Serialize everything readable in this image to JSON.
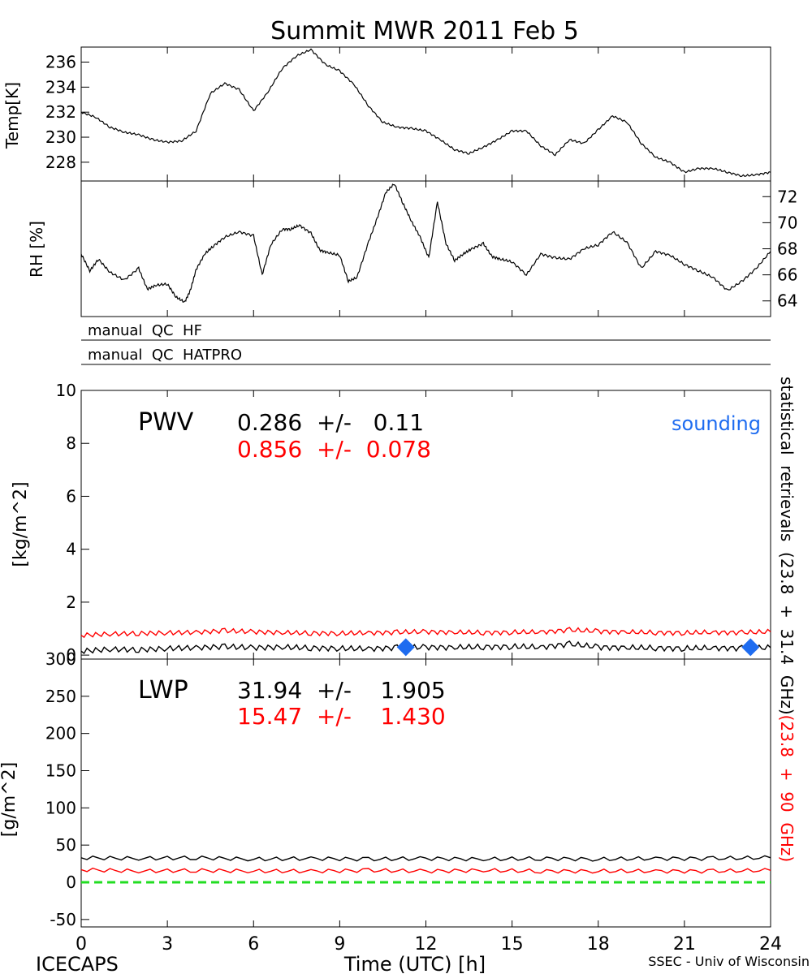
{
  "title": "Summit MWR 2011 Feb  5",
  "footer": {
    "left": "ICECAPS",
    "center": "Time (UTC) [h]",
    "right": "SSEC - Univ of Wisconsin"
  },
  "colors": {
    "hf": "#000000",
    "hatpro": "#ff0000",
    "sounding": "#1e6cf0",
    "zero_line": "#22dd22"
  },
  "x_axis": {
    "ticks": [
      0,
      3,
      6,
      9,
      12,
      15,
      18,
      21,
      24
    ],
    "tick_labels": [
      "0",
      "3",
      "6",
      "9",
      "12",
      "15",
      "18",
      "21",
      "24"
    ],
    "range": [
      0,
      24
    ]
  },
  "qc_bars": [
    "manual  QC  HF",
    "manual  QC  HATPRO"
  ],
  "side_label": {
    "black": "statistical  retrievals  (23.8  +  31.4  GHz)",
    "red": "(23.8  +  90  GHz)"
  },
  "chart_data": [
    {
      "name": "temp",
      "type": "line",
      "ylabel": "Temp[K]",
      "yticks": [
        228,
        230,
        232,
        234,
        236
      ],
      "ylim": [
        226.5,
        237.2
      ],
      "series": [
        {
          "color": "#000000",
          "x": [
            0,
            0.5,
            1,
            1.5,
            2,
            2.5,
            3,
            3.5,
            4,
            4.5,
            5,
            5.5,
            6,
            6.5,
            7,
            7.5,
            8,
            8.5,
            9,
            9.5,
            10,
            10.5,
            11,
            11.5,
            12,
            12.5,
            13,
            13.5,
            14,
            14.5,
            15,
            15.5,
            16,
            16.5,
            17,
            17.5,
            18,
            18.5,
            19,
            19.5,
            20,
            20.5,
            21,
            21.5,
            22,
            22.5,
            23,
            23.5,
            24
          ],
          "y": [
            232,
            231.6,
            230.8,
            230.4,
            230.2,
            229.8,
            229.6,
            229.7,
            230.5,
            233.5,
            234.3,
            233.8,
            232.1,
            233.6,
            235.5,
            236.5,
            237,
            235.8,
            235.3,
            234.2,
            232.5,
            231.2,
            230.8,
            230.7,
            230.5,
            229.8,
            229,
            228.7,
            229.2,
            229.8,
            230.5,
            230.5,
            229.3,
            228.6,
            229.8,
            229.5,
            230.6,
            231.7,
            231.2,
            229.5,
            228.4,
            228.0,
            227.2,
            227.5,
            227.5,
            227.2,
            226.9,
            227.0,
            227.2
          ]
        }
      ]
    },
    {
      "name": "rh",
      "type": "line",
      "ylabel": "RH [%]",
      "yticks": [
        64,
        66,
        68,
        70,
        72
      ],
      "ylim": [
        62.8,
        73.2
      ],
      "series": [
        {
          "color": "#000000",
          "x": [
            0,
            0.3,
            0.6,
            1,
            1.5,
            2,
            2.3,
            2.6,
            3,
            3.3,
            3.6,
            3.8,
            4,
            4.3,
            4.6,
            5,
            5.5,
            6,
            6.3,
            6.6,
            7,
            7.3,
            7.6,
            8,
            8.3,
            8.6,
            9,
            9.3,
            9.6,
            10,
            10.3,
            10.6,
            10.9,
            11.2,
            11.5,
            11.8,
            12.1,
            12.4,
            12.7,
            13,
            13.3,
            13.6,
            14,
            14.3,
            14.6,
            15,
            15.5,
            16,
            16.5,
            17,
            17.5,
            18,
            18.5,
            19,
            19.5,
            20,
            20.5,
            21,
            21.5,
            22,
            22.5,
            23,
            23.5,
            24
          ],
          "y": [
            67.6,
            66.3,
            67.2,
            66.2,
            65.6,
            66.5,
            64.9,
            65.2,
            65.3,
            64.3,
            63.9,
            64.8,
            66.4,
            67.6,
            68.2,
            68.9,
            69.3,
            69.0,
            66.0,
            68.3,
            69.5,
            69.5,
            69.8,
            69.2,
            67.9,
            67.7,
            67.5,
            65.5,
            65.8,
            68.5,
            70.3,
            72.3,
            73.0,
            71.5,
            70.1,
            68.9,
            67.3,
            71.6,
            68.4,
            67.1,
            67.6,
            68.0,
            68.4,
            67.4,
            67.2,
            67.0,
            66.0,
            67.6,
            67.3,
            67.2,
            68.0,
            68.3,
            69.3,
            68.5,
            66.5,
            67.8,
            67.5,
            66.8,
            66.3,
            65.8,
            64.8,
            65.5,
            66.5,
            67.8
          ]
        }
      ]
    },
    {
      "name": "pwv",
      "type": "line",
      "label": "PWV",
      "ylabel": "[kg/m^2]",
      "yticks": [
        0,
        2,
        4,
        6,
        8,
        10
      ],
      "ylim": [
        -0.15,
        10
      ],
      "stats": [
        {
          "text": "0.286  +/-   0.11",
          "color": "#000000"
        },
        {
          "text": "0.856  +/-  0.078",
          "color": "#ff0000"
        }
      ],
      "legend": "sounding",
      "series": [
        {
          "color": "#000000",
          "x": [
            0,
            1,
            2,
            3,
            4,
            5,
            6,
            7,
            8,
            9,
            10,
            11,
            12,
            13,
            14,
            15,
            16,
            17,
            18,
            19,
            20,
            21,
            22,
            23,
            24
          ],
          "y": [
            0.15,
            0.22,
            0.2,
            0.25,
            0.28,
            0.32,
            0.28,
            0.3,
            0.27,
            0.25,
            0.24,
            0.28,
            0.3,
            0.29,
            0.31,
            0.32,
            0.3,
            0.42,
            0.3,
            0.28,
            0.27,
            0.25,
            0.27,
            0.26,
            0.28
          ]
        },
        {
          "color": "#ff0000",
          "x": [
            0,
            1,
            2,
            3,
            4,
            5,
            6,
            7,
            8,
            9,
            10,
            11,
            12,
            13,
            14,
            15,
            16,
            17,
            18,
            19,
            20,
            21,
            22,
            23,
            24
          ],
          "y": [
            0.75,
            0.8,
            0.82,
            0.84,
            0.86,
            0.92,
            0.88,
            0.85,
            0.83,
            0.82,
            0.84,
            0.86,
            0.88,
            0.86,
            0.85,
            0.86,
            0.87,
            0.95,
            0.9,
            0.87,
            0.85,
            0.84,
            0.86,
            0.85,
            0.88
          ]
        }
      ],
      "soundings": [
        {
          "x": 11.3,
          "y": 0.3
        },
        {
          "x": 23.3,
          "y": 0.3
        }
      ]
    },
    {
      "name": "lwp",
      "type": "line",
      "label": "LWP",
      "ylabel": "[g/m^2]",
      "yticks": [
        -50,
        0,
        50,
        100,
        150,
        200,
        250,
        300
      ],
      "ylim": [
        -60,
        300
      ],
      "stats": [
        {
          "text": "31.94  +/-    1.905",
          "color": "#000000"
        },
        {
          "text": "15.47  +/-    1.430",
          "color": "#ff0000"
        }
      ],
      "series": [
        {
          "color": "#000000",
          "x": [
            0,
            2,
            4,
            6,
            8,
            10,
            12,
            14,
            16,
            18,
            20,
            22,
            24
          ],
          "y": [
            33,
            32,
            33,
            31,
            32,
            31,
            32,
            31,
            32,
            31,
            32,
            32,
            33
          ]
        },
        {
          "color": "#ff0000",
          "x": [
            0,
            2,
            4,
            6,
            8,
            10,
            12,
            14,
            16,
            18,
            20,
            22,
            24
          ],
          "y": [
            17,
            15,
            16,
            15,
            15,
            16,
            15,
            16,
            15,
            15,
            15,
            15,
            16
          ]
        }
      ],
      "zero_line": 0
    }
  ]
}
